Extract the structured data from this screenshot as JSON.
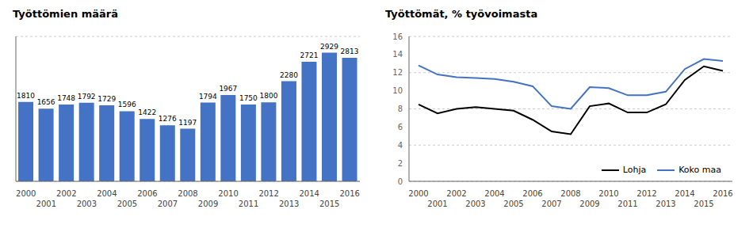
{
  "chart_data": [
    {
      "type": "bar",
      "title": "Työttömien määrä",
      "categories": [
        "2000",
        "2001",
        "2002",
        "2003",
        "2004",
        "2005",
        "2006",
        "2007",
        "2008",
        "2009",
        "2010",
        "2011",
        "2012",
        "2013",
        "2014",
        "2015",
        "2016"
      ],
      "values": [
        1810,
        1656,
        1748,
        1792,
        1729,
        1596,
        1422,
        1276,
        1197,
        1794,
        1967,
        1750,
        1800,
        2280,
        2721,
        2929,
        2813
      ],
      "color": "#4472C4",
      "ylim": [
        0,
        3300
      ],
      "yticks": [
        500,
        1000,
        1500,
        2000,
        2500,
        3000
      ],
      "grid": true,
      "data_labels": true,
      "tick_labels": "x"
    },
    {
      "type": "line",
      "title": "Työttömät, % työvoimasta",
      "x": [
        2000,
        2001,
        2002,
        2003,
        2004,
        2005,
        2006,
        2007,
        2008,
        2009,
        2010,
        2011,
        2012,
        2013,
        2014,
        2015,
        2016
      ],
      "xlim": [
        1999.5,
        2016.5
      ],
      "xticks": [
        2000,
        2001,
        2002,
        2003,
        2004,
        2005,
        2006,
        2007,
        2008,
        2009,
        2010,
        2011,
        2012,
        2013,
        2014,
        2015,
        2016
      ],
      "ylim": [
        0,
        16
      ],
      "yticks": [
        0,
        2,
        4,
        6,
        8,
        10,
        12,
        14,
        16
      ],
      "series": [
        {
          "name": "Lohja",
          "color": "#000000",
          "values": [
            8.5,
            7.5,
            8.0,
            8.2,
            8.0,
            7.8,
            6.8,
            5.5,
            5.2,
            8.3,
            8.6,
            7.6,
            7.6,
            8.5,
            11.2,
            12.7,
            12.2
          ]
        },
        {
          "name": "Koko maa",
          "color": "#4472C4",
          "values": [
            12.8,
            11.8,
            11.5,
            11.4,
            11.3,
            11.0,
            10.5,
            8.3,
            8.0,
            10.4,
            10.3,
            9.5,
            9.5,
            9.9,
            12.4,
            13.5,
            13.3
          ]
        }
      ],
      "grid": true,
      "legend": "lower right"
    }
  ]
}
